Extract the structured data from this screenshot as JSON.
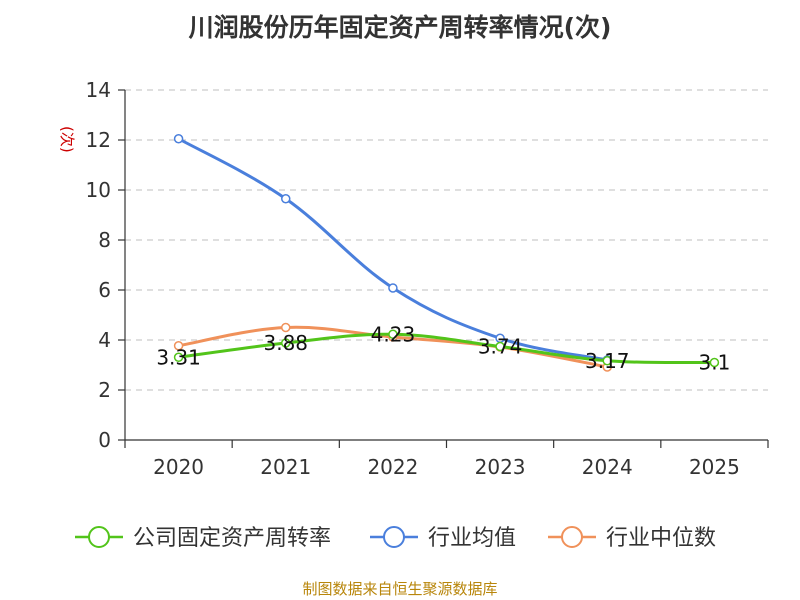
{
  "page": {
    "title": "川润股份历年固定资产周转率情况(次)",
    "source": "制图数据来自恒生聚源数据库"
  },
  "chart_data": {
    "type": "line",
    "title": "川润股份历年固定资产周转率情况(次)",
    "xlabel": "",
    "ylabel": "(次)",
    "categories": [
      "2020",
      "2021",
      "2022",
      "2023",
      "2024",
      "2025"
    ],
    "ylim": [
      0,
      14
    ],
    "yticks": [
      0,
      2,
      4,
      6,
      8,
      10,
      12,
      14
    ],
    "grid": true,
    "legend_position": "bottom",
    "series": [
      {
        "name": "公司固定资产周转率",
        "color": "#52c41a",
        "values": [
          3.31,
          3.88,
          4.23,
          3.74,
          3.17,
          3.1
        ],
        "labels": [
          "3.31",
          "3.88",
          "4.23",
          "3.74",
          "3.17",
          "3.1"
        ]
      },
      {
        "name": "行业均值",
        "color": "#4a7fdc",
        "values": [
          12.05,
          9.65,
          6.08,
          4.07,
          3.2,
          null
        ],
        "labels": []
      },
      {
        "name": "行业中位数",
        "color": "#f0915a",
        "values": [
          3.77,
          4.5,
          4.12,
          3.72,
          2.92,
          null
        ],
        "labels": []
      }
    ]
  }
}
